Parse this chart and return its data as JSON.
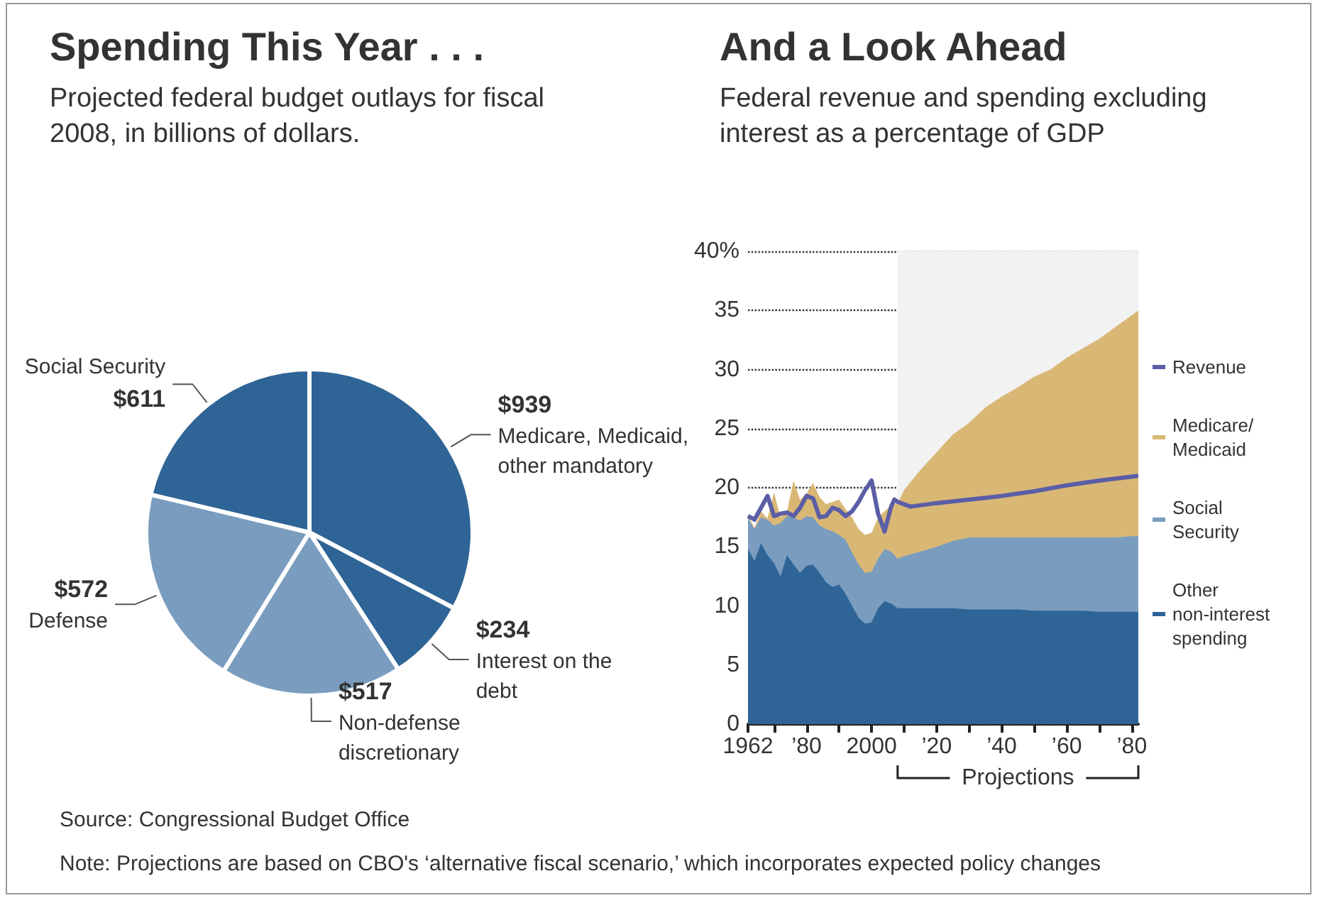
{
  "chart_data": [
    {
      "type": "pie",
      "title": "Spending This Year . . .",
      "subtitle": "Projected federal budget outlays for fiscal 2008, in billions of dollars.",
      "categories": [
        "Medicare, Medicaid, other mandatory",
        "Interest on the debt",
        "Non-defense discretionary",
        "Defense",
        "Social Security"
      ],
      "values": [
        939,
        234,
        517,
        572,
        611
      ],
      "value_labels": [
        "$939",
        "$234",
        "$517",
        "$572",
        "$611"
      ],
      "colors": [
        "#2f6496",
        "#2f6496",
        "#7a9dbf",
        "#7a9dbf",
        "#2f6496"
      ],
      "legend": false,
      "annotations": [
        "Source: Congressional Budget Office",
        "Note: Projections are based on CBO's ‘alternative fiscal scenario,’ which incorporates expected policy changes"
      ]
    },
    {
      "type": "area",
      "stacked": true,
      "title": "And a Look Ahead",
      "subtitle": "Federal revenue and spending excluding interest as a percentage of GDP",
      "x": [
        1962,
        1964,
        1966,
        1968,
        1970,
        1972,
        1974,
        1976,
        1978,
        1980,
        1982,
        1984,
        1986,
        1988,
        1990,
        1992,
        1994,
        1996,
        1998,
        2000,
        2002,
        2004,
        2006,
        2008,
        2010,
        2015,
        2020,
        2025,
        2030,
        2035,
        2040,
        2045,
        2050,
        2055,
        2060,
        2065,
        2070,
        2075,
        2080,
        2082
      ],
      "series": [
        {
          "name": "Other non-interest spending",
          "color": "#2f6496",
          "values": [
            14.8,
            13.8,
            15.3,
            14.3,
            13.6,
            12.5,
            14.3,
            13.5,
            12.8,
            13.4,
            13.5,
            12.8,
            12.0,
            11.6,
            11.8,
            11.0,
            10.0,
            9.0,
            8.5,
            8.6,
            9.8,
            10.4,
            10.2,
            9.8,
            9.8,
            9.8,
            9.8,
            9.8,
            9.7,
            9.7,
            9.7,
            9.7,
            9.6,
            9.6,
            9.6,
            9.6,
            9.5,
            9.5,
            9.5,
            9.5
          ]
        },
        {
          "name": "Social Security",
          "color": "#7a9dbf",
          "values": [
            2.6,
            2.7,
            2.2,
            3.0,
            3.2,
            4.5,
            3.3,
            4.0,
            4.4,
            4.2,
            4.0,
            4.0,
            4.5,
            4.7,
            4.2,
            4.6,
            4.5,
            4.5,
            4.3,
            4.3,
            4.2,
            4.4,
            4.4,
            4.2,
            4.4,
            4.8,
            5.2,
            5.7,
            6.1,
            6.1,
            6.1,
            6.1,
            6.2,
            6.2,
            6.2,
            6.2,
            6.3,
            6.3,
            6.4,
            6.4
          ]
        },
        {
          "name": "Medicare/Medicaid",
          "color": "#d9b876",
          "values": [
            0.2,
            0.1,
            0.5,
            0.1,
            2.8,
            0.5,
            0.4,
            3.1,
            1.8,
            1.9,
            2.9,
            2.4,
            2.1,
            2.5,
            3.0,
            2.6,
            3.0,
            3.0,
            3.2,
            3.3,
            3.5,
            3.2,
            3.9,
            4.7,
            5.6,
            6.9,
            8.0,
            9.0,
            9.7,
            11.0,
            11.9,
            12.7,
            13.6,
            14.2,
            15.2,
            16.0,
            16.8,
            17.8,
            18.7,
            19.1
          ]
        },
        {
          "name": "Revenue",
          "type": "line",
          "color": "#5b5ea6",
          "x": [
            1962,
            1964,
            1968,
            1970,
            1972,
            1974,
            1976,
            1978,
            1980,
            1982,
            1984,
            1986,
            1988,
            1990,
            1992,
            1994,
            1996,
            1998,
            2000,
            2002,
            2004,
            2006,
            2007,
            2008,
            2010,
            2012,
            2020,
            2030,
            2040,
            2050,
            2060,
            2070,
            2082
          ],
          "values": [
            17.6,
            17.3,
            19.3,
            17.6,
            17.8,
            17.9,
            17.6,
            18.3,
            19.3,
            19.1,
            17.5,
            17.6,
            18.3,
            18.1,
            17.6,
            18.0,
            18.8,
            19.8,
            20.6,
            17.8,
            16.3,
            18.4,
            19.0,
            18.8,
            18.6,
            18.4,
            18.7,
            19.0,
            19.3,
            19.7,
            20.2,
            20.6,
            21.0
          ]
        }
      ],
      "xlim": [
        1962,
        2082
      ],
      "xticks": [
        {
          "value": 1962,
          "label": "1962"
        },
        {
          "value": 1970,
          "label": null
        },
        {
          "value": 1980,
          "label": "’80"
        },
        {
          "value": 1990,
          "label": null
        },
        {
          "value": 2000,
          "label": "2000"
        },
        {
          "value": 2010,
          "label": null
        },
        {
          "value": 2020,
          "label": "’20"
        },
        {
          "value": 2030,
          "label": null
        },
        {
          "value": 2040,
          "label": "’40"
        },
        {
          "value": 2050,
          "label": null
        },
        {
          "value": 2060,
          "label": "’60"
        },
        {
          "value": 2070,
          "label": null
        },
        {
          "value": 2080,
          "label": "’80"
        }
      ],
      "ylim": [
        0,
        40
      ],
      "yticks": [
        0,
        5,
        10,
        15,
        20,
        25,
        30,
        35,
        {
          "value": 40,
          "label": "40%"
        }
      ],
      "grid": "y",
      "legend": "right",
      "bands": [
        {
          "axis": "x",
          "from": 2008,
          "to": 2082,
          "label": "Projections"
        }
      ]
    }
  ]
}
